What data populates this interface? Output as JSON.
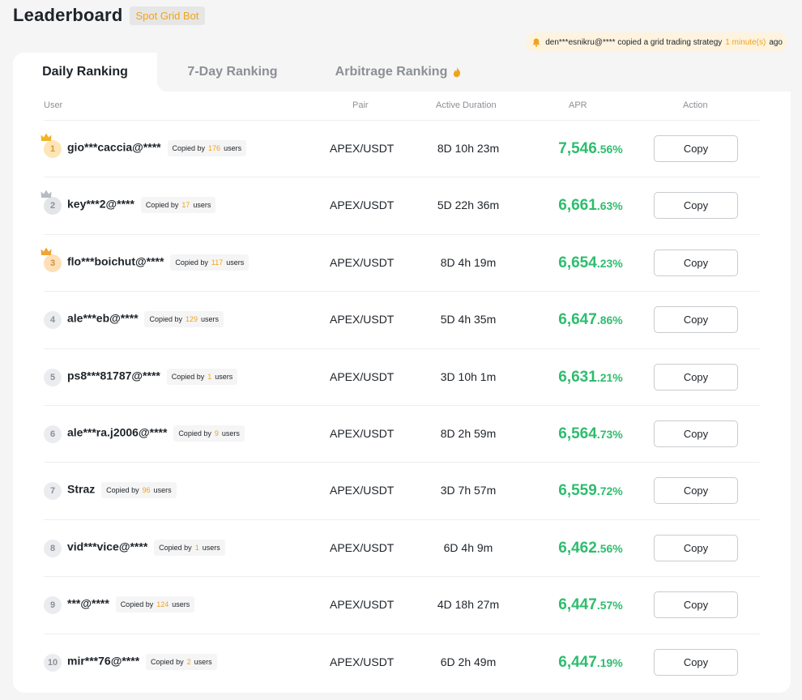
{
  "header": {
    "title": "Leaderboard",
    "badge": "Spot Grid Bot"
  },
  "notification": {
    "user": "den***esnikru@****",
    "text": "copied a grid trading strategy",
    "time": "1 minute(s)",
    "suffix": "ago"
  },
  "tabs": [
    {
      "label": "Daily Ranking",
      "active": true
    },
    {
      "label": "7-Day Ranking",
      "active": false
    },
    {
      "label": "Arbitrage Ranking",
      "active": false
    }
  ],
  "columns": {
    "user": "User",
    "pair": "Pair",
    "duration": "Active Duration",
    "apr": "APR",
    "action": "Action"
  },
  "copied_prefix": "Copied by",
  "copied_suffix": "users",
  "rows": [
    {
      "rank": "1",
      "user": "gio***caccia@****",
      "copied": "176",
      "pair": "APEX/USDT",
      "duration": "8D 10h 23m",
      "apr_int": "7,546",
      "apr_dec": ".56%",
      "action": "Copy"
    },
    {
      "rank": "2",
      "user": "key***2@****",
      "copied": "17",
      "pair": "APEX/USDT",
      "duration": "5D 22h 36m",
      "apr_int": "6,661",
      "apr_dec": ".63%",
      "action": "Copy"
    },
    {
      "rank": "3",
      "user": "flo***boichut@****",
      "copied": "117",
      "pair": "APEX/USDT",
      "duration": "8D 4h 19m",
      "apr_int": "6,654",
      "apr_dec": ".23%",
      "action": "Copy"
    },
    {
      "rank": "4",
      "user": "ale***eb@****",
      "copied": "129",
      "pair": "APEX/USDT",
      "duration": "5D 4h 35m",
      "apr_int": "6,647",
      "apr_dec": ".86%",
      "action": "Copy"
    },
    {
      "rank": "5",
      "user": "ps8***81787@****",
      "copied": "1",
      "pair": "APEX/USDT",
      "duration": "3D 10h 1m",
      "apr_int": "6,631",
      "apr_dec": ".21%",
      "action": "Copy"
    },
    {
      "rank": "6",
      "user": "ale***ra.j2006@****",
      "copied": "9",
      "pair": "APEX/USDT",
      "duration": "8D 2h 59m",
      "apr_int": "6,564",
      "apr_dec": ".73%",
      "action": "Copy"
    },
    {
      "rank": "7",
      "user": "Straz",
      "copied": "96",
      "pair": "APEX/USDT",
      "duration": "3D 7h 57m",
      "apr_int": "6,559",
      "apr_dec": ".72%",
      "action": "Copy"
    },
    {
      "rank": "8",
      "user": "vid***vice@****",
      "copied": "1",
      "pair": "APEX/USDT",
      "duration": "6D 4h 9m",
      "apr_int": "6,462",
      "apr_dec": ".56%",
      "action": "Copy"
    },
    {
      "rank": "9",
      "user": "***@****",
      "copied": "124",
      "pair": "APEX/USDT",
      "duration": "4D 18h 27m",
      "apr_int": "6,447",
      "apr_dec": ".57%",
      "action": "Copy"
    },
    {
      "rank": "10",
      "user": "mir***76@****",
      "copied": "2",
      "pair": "APEX/USDT",
      "duration": "6D 2h 49m",
      "apr_int": "6,447",
      "apr_dec": ".19%",
      "action": "Copy"
    }
  ],
  "colors": {
    "accent": "#f0a41b",
    "positive": "#2ebd6e",
    "text": "#1e2329",
    "muted": "#8c8f96"
  }
}
